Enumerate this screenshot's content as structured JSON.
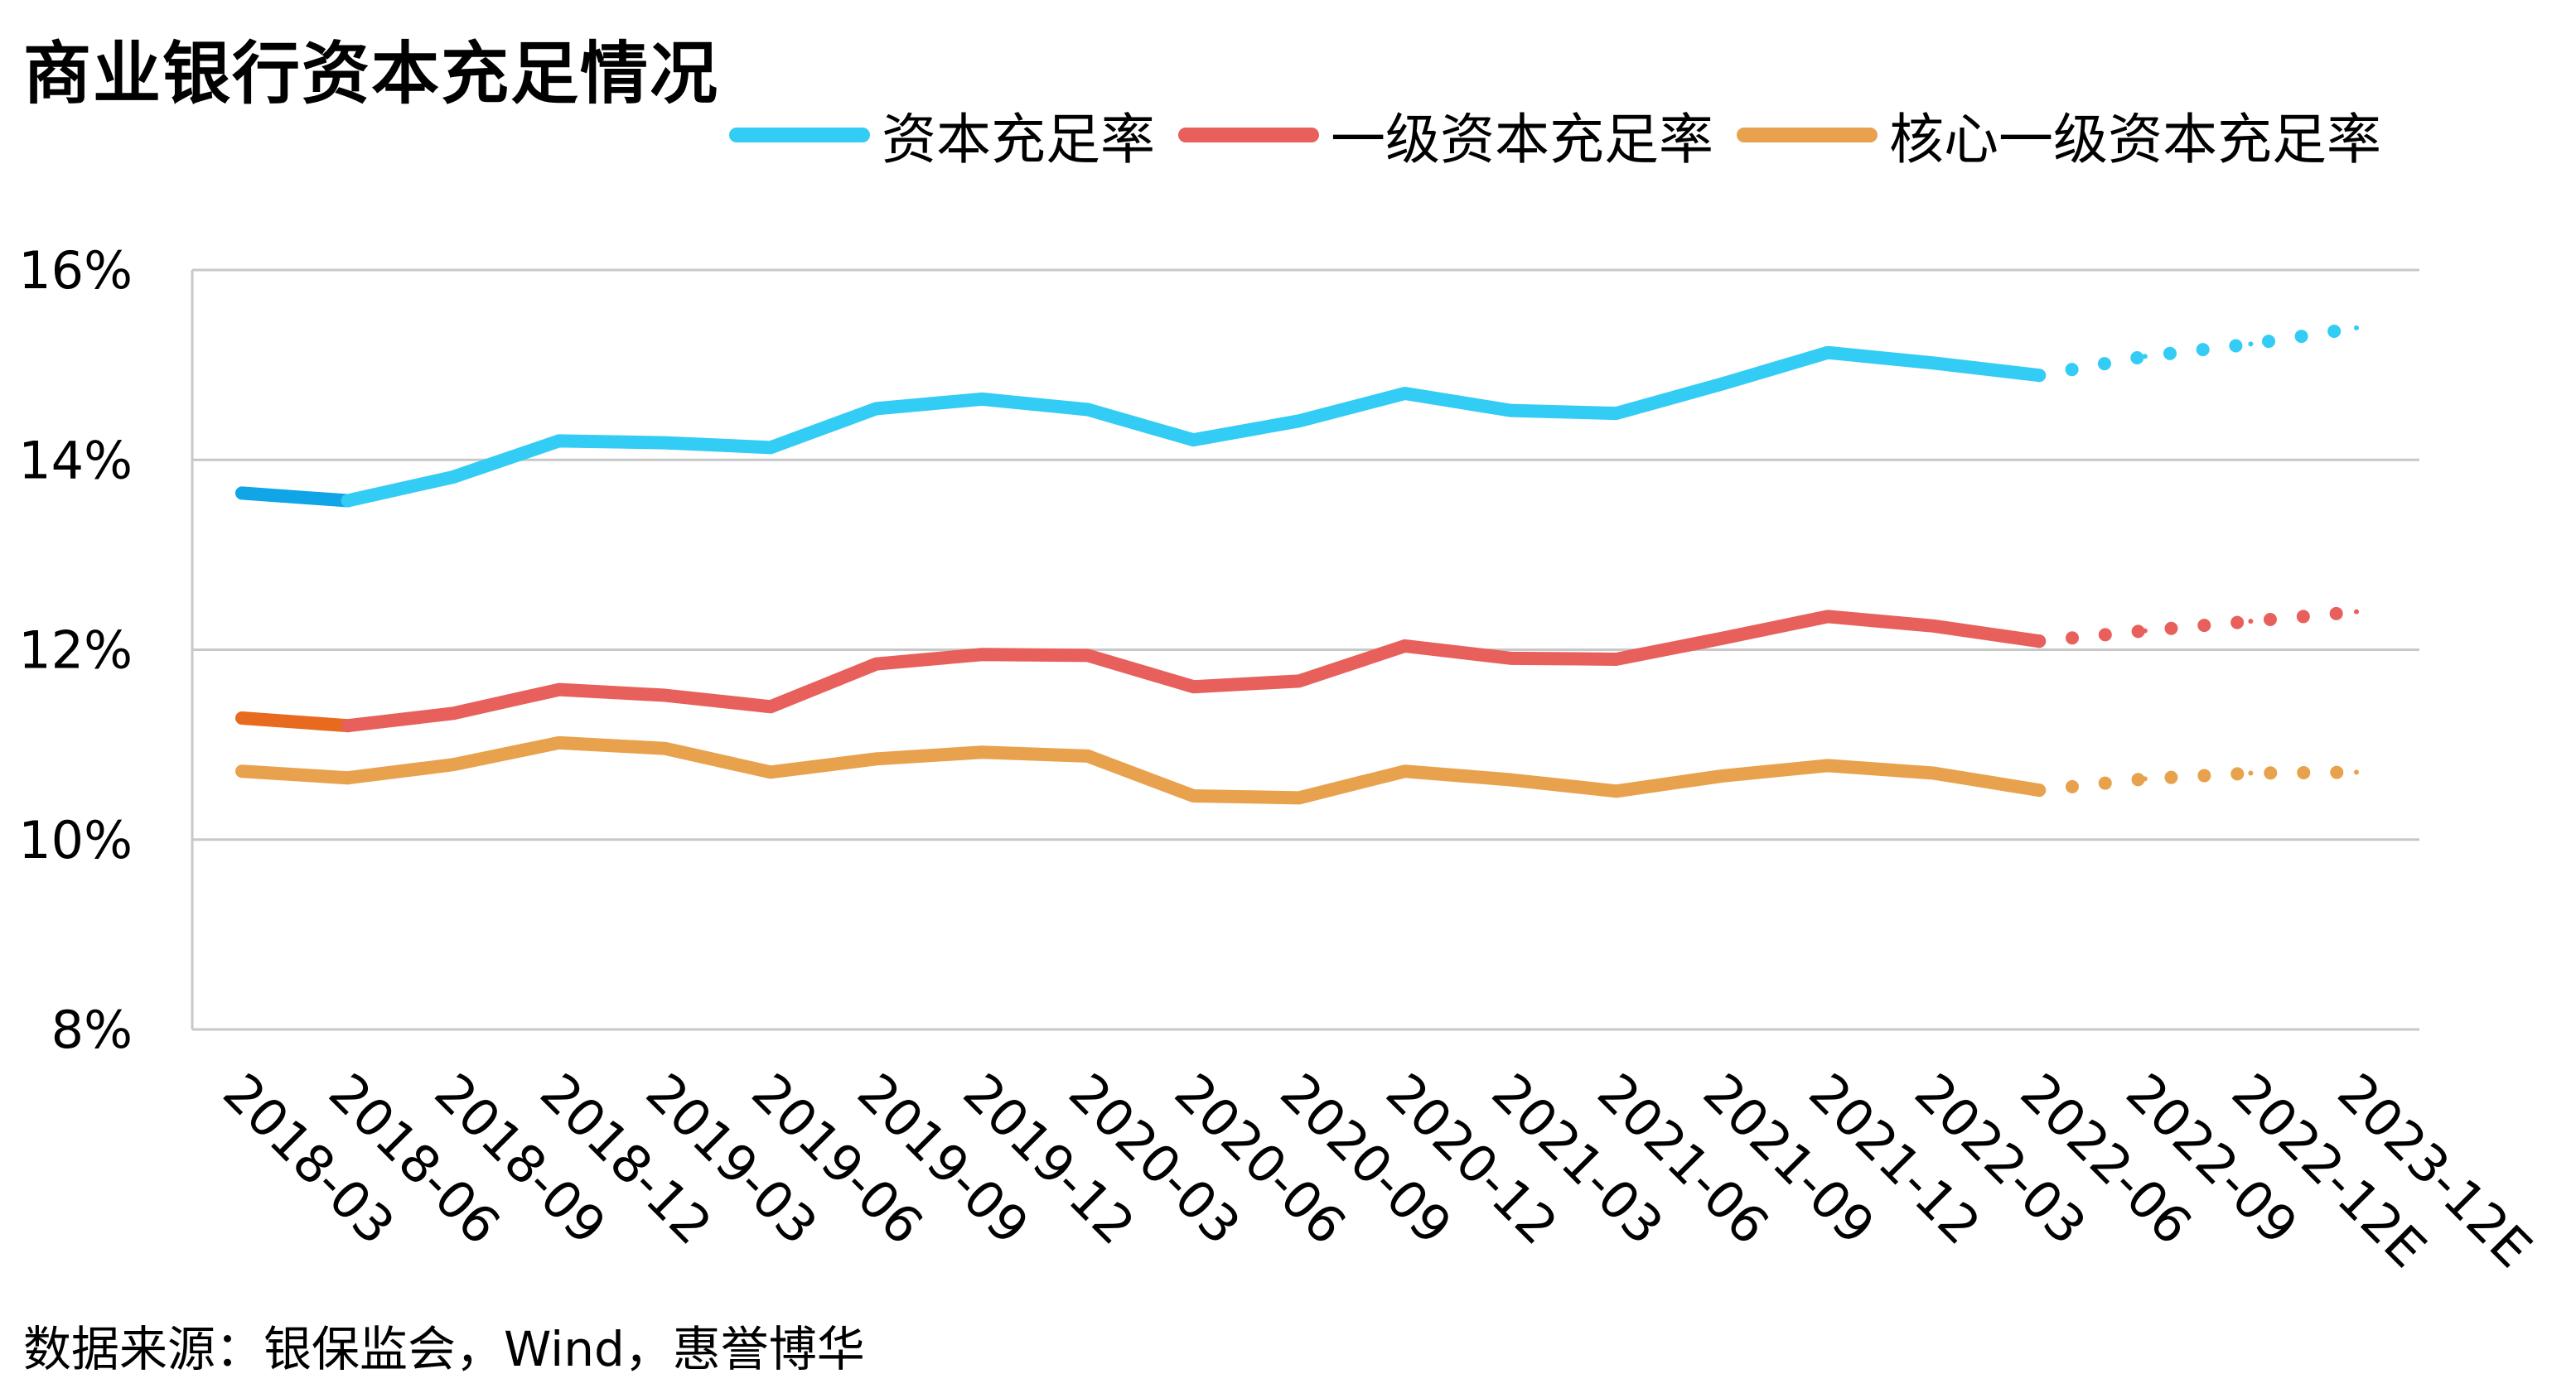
{
  "title": "商业银行资本充足情况",
  "source": "数据来源：银保监会，Wind，惠誉博华",
  "chart_data": {
    "type": "line",
    "title": "商业银行资本充足情况",
    "categories": [
      "2018-03",
      "2018-06",
      "2018-09",
      "2018-12",
      "2019-03",
      "2019-06",
      "2019-09",
      "2019-12",
      "2020-03",
      "2020-06",
      "2020-09",
      "2020-12",
      "2021-03",
      "2021-06",
      "2021-09",
      "2021-12",
      "2022-03",
      "2022-06",
      "2022-09",
      "2022-12E",
      "2023-12E"
    ],
    "y_tick_labels": [
      "8%",
      "10%",
      "12%",
      "14%",
      "16%"
    ],
    "y_ticks": [
      8,
      10,
      12,
      14,
      16
    ],
    "ylim": [
      8,
      16
    ],
    "grid": true,
    "legend_position": "top-right",
    "forecast_from_index": 17,
    "series": [
      {
        "name": "资本充足率",
        "color": "#33ccf5",
        "start_color": "#0fa5e6",
        "values": [
          13.65,
          13.57,
          13.82,
          14.2,
          14.18,
          14.13,
          14.54,
          14.64,
          14.53,
          14.21,
          14.41,
          14.7,
          14.52,
          14.49,
          14.8,
          15.13,
          15.02,
          14.89,
          15.09,
          15.22,
          15.39
        ]
      },
      {
        "name": "一级资本充足率",
        "color": "#e8605c",
        "start_color": "#e86a1e",
        "values": [
          11.28,
          11.2,
          11.33,
          11.58,
          11.52,
          11.4,
          11.85,
          11.95,
          11.94,
          11.61,
          11.67,
          12.04,
          11.91,
          11.9,
          12.12,
          12.35,
          12.25,
          12.09,
          12.2,
          12.3,
          12.4
        ]
      },
      {
        "name": "核心一级资本充足率",
        "color": "#e8a24d",
        "start_color": "#e8a24d",
        "values": [
          10.72,
          10.65,
          10.79,
          11.02,
          10.96,
          10.71,
          10.85,
          10.92,
          10.88,
          10.46,
          10.44,
          10.72,
          10.63,
          10.51,
          10.67,
          10.78,
          10.7,
          10.52,
          10.64,
          10.7,
          10.71
        ]
      }
    ]
  }
}
